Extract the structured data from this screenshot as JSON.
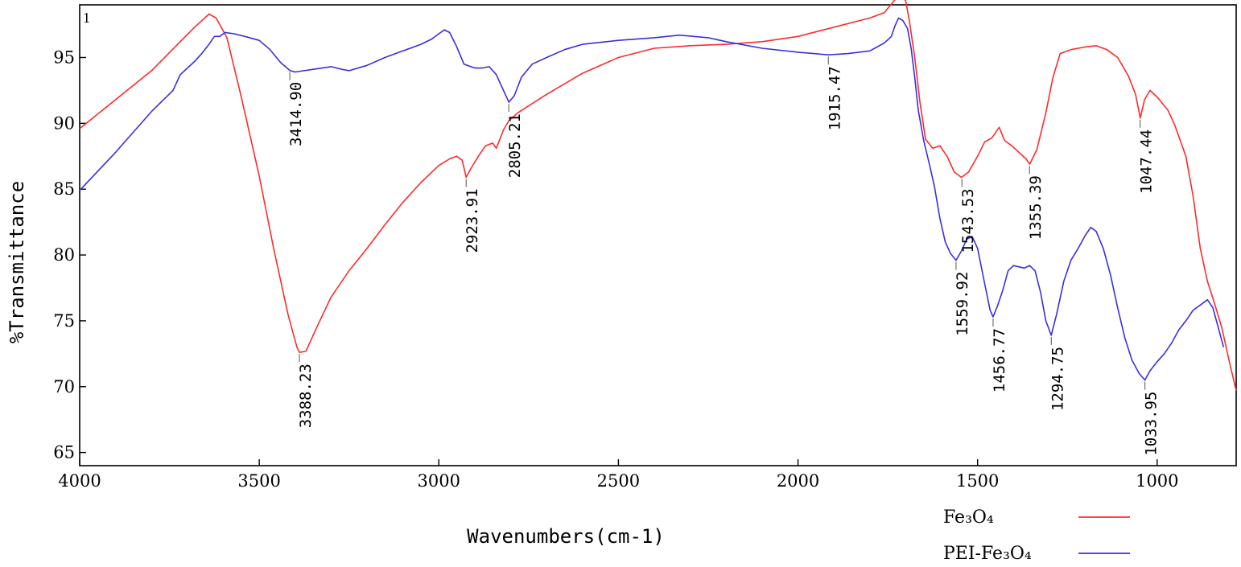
{
  "chart_data": {
    "type": "line",
    "title": "",
    "xlabel": "Wavenumbers(cm-1)",
    "ylabel": "%Transmittance",
    "xlim": [
      4000,
      780
    ],
    "ylim": [
      64,
      99
    ],
    "x_reversed": true,
    "x_ticks": [
      4000,
      3500,
      3000,
      2500,
      2000,
      1500,
      1000
    ],
    "y_ticks": [
      65,
      70,
      75,
      80,
      85,
      90,
      95
    ],
    "grid": false,
    "legend_position": "bottom-right",
    "corner_mark": "1",
    "series": [
      {
        "name": "Fe₃O₄",
        "color": "#ff2a2a",
        "points": [
          [
            4000,
            89.6
          ],
          [
            3900,
            91.8
          ],
          [
            3800,
            94.0
          ],
          [
            3720,
            96.2
          ],
          [
            3680,
            97.3
          ],
          [
            3640,
            98.3
          ],
          [
            3620,
            98.0
          ],
          [
            3590,
            96.5
          ],
          [
            3550,
            92.0
          ],
          [
            3500,
            86.0
          ],
          [
            3460,
            80.5
          ],
          [
            3420,
            75.5
          ],
          [
            3395,
            73.0
          ],
          [
            3388,
            72.6
          ],
          [
            3370,
            72.7
          ],
          [
            3340,
            74.5
          ],
          [
            3300,
            76.8
          ],
          [
            3250,
            78.8
          ],
          [
            3200,
            80.5
          ],
          [
            3150,
            82.3
          ],
          [
            3100,
            84.0
          ],
          [
            3050,
            85.5
          ],
          [
            3000,
            86.8
          ],
          [
            2970,
            87.3
          ],
          [
            2950,
            87.5
          ],
          [
            2935,
            87.2
          ],
          [
            2924,
            85.9
          ],
          [
            2910,
            86.6
          ],
          [
            2890,
            87.5
          ],
          [
            2870,
            88.3
          ],
          [
            2850,
            88.5
          ],
          [
            2840,
            88.1
          ],
          [
            2820,
            89.5
          ],
          [
            2805,
            90.2
          ],
          [
            2780,
            90.8
          ],
          [
            2700,
            92.2
          ],
          [
            2600,
            93.8
          ],
          [
            2500,
            95.0
          ],
          [
            2400,
            95.7
          ],
          [
            2300,
            95.9
          ],
          [
            2200,
            96.0
          ],
          [
            2100,
            96.2
          ],
          [
            2000,
            96.6
          ],
          [
            1900,
            97.3
          ],
          [
            1800,
            98.0
          ],
          [
            1760,
            98.4
          ],
          [
            1730,
            99.4
          ],
          [
            1715,
            99.8
          ],
          [
            1700,
            99.3
          ],
          [
            1690,
            97.8
          ],
          [
            1675,
            95.0
          ],
          [
            1660,
            91.5
          ],
          [
            1645,
            88.8
          ],
          [
            1625,
            88.1
          ],
          [
            1605,
            88.3
          ],
          [
            1585,
            87.5
          ],
          [
            1565,
            86.3
          ],
          [
            1545,
            85.9
          ],
          [
            1525,
            86.3
          ],
          [
            1500,
            87.5
          ],
          [
            1480,
            88.6
          ],
          [
            1460,
            88.9
          ],
          [
            1440,
            89.7
          ],
          [
            1425,
            88.7
          ],
          [
            1405,
            88.3
          ],
          [
            1385,
            87.8
          ],
          [
            1365,
            87.3
          ],
          [
            1355,
            86.9
          ],
          [
            1335,
            88.0
          ],
          [
            1310,
            90.8
          ],
          [
            1290,
            93.5
          ],
          [
            1270,
            95.3
          ],
          [
            1240,
            95.6
          ],
          [
            1200,
            95.8
          ],
          [
            1170,
            95.9
          ],
          [
            1140,
            95.6
          ],
          [
            1110,
            95.0
          ],
          [
            1080,
            93.6
          ],
          [
            1060,
            92.2
          ],
          [
            1047,
            90.4
          ],
          [
            1035,
            91.8
          ],
          [
            1020,
            92.5
          ],
          [
            1000,
            92.0
          ],
          [
            970,
            91.0
          ],
          [
            950,
            89.8
          ],
          [
            920,
            87.5
          ],
          [
            900,
            84.5
          ],
          [
            880,
            80.5
          ],
          [
            860,
            78.0
          ],
          [
            840,
            76.3
          ],
          [
            820,
            74.5
          ],
          [
            800,
            72.0
          ],
          [
            780,
            69.7
          ]
        ]
      },
      {
        "name": "PEI-Fe₃O₄",
        "color": "#3a2ee0",
        "points": [
          [
            4000,
            84.9
          ],
          [
            3900,
            87.8
          ],
          [
            3800,
            90.9
          ],
          [
            3740,
            92.5
          ],
          [
            3720,
            93.7
          ],
          [
            3700,
            94.2
          ],
          [
            3680,
            94.7
          ],
          [
            3660,
            95.3
          ],
          [
            3640,
            96.0
          ],
          [
            3625,
            96.6
          ],
          [
            3610,
            96.6
          ],
          [
            3595,
            96.9
          ],
          [
            3570,
            96.8
          ],
          [
            3540,
            96.6
          ],
          [
            3500,
            96.3
          ],
          [
            3470,
            95.6
          ],
          [
            3440,
            94.6
          ],
          [
            3414,
            94.0
          ],
          [
            3400,
            93.9
          ],
          [
            3350,
            94.1
          ],
          [
            3300,
            94.3
          ],
          [
            3270,
            94.1
          ],
          [
            3250,
            94.0
          ],
          [
            3200,
            94.4
          ],
          [
            3150,
            95.0
          ],
          [
            3100,
            95.5
          ],
          [
            3050,
            96.0
          ],
          [
            3020,
            96.4
          ],
          [
            3000,
            96.8
          ],
          [
            2985,
            97.1
          ],
          [
            2970,
            96.9
          ],
          [
            2950,
            95.8
          ],
          [
            2930,
            94.5
          ],
          [
            2900,
            94.2
          ],
          [
            2880,
            94.2
          ],
          [
            2860,
            94.3
          ],
          [
            2840,
            93.7
          ],
          [
            2820,
            92.5
          ],
          [
            2805,
            91.6
          ],
          [
            2790,
            92.1
          ],
          [
            2770,
            93.5
          ],
          [
            2740,
            94.5
          ],
          [
            2700,
            95.0
          ],
          [
            2650,
            95.6
          ],
          [
            2600,
            96.0
          ],
          [
            2500,
            96.3
          ],
          [
            2400,
            96.5
          ],
          [
            2330,
            96.7
          ],
          [
            2250,
            96.5
          ],
          [
            2200,
            96.2
          ],
          [
            2100,
            95.7
          ],
          [
            2000,
            95.4
          ],
          [
            1915,
            95.2
          ],
          [
            1860,
            95.3
          ],
          [
            1800,
            95.5
          ],
          [
            1760,
            96.1
          ],
          [
            1740,
            96.6
          ],
          [
            1730,
            97.4
          ],
          [
            1720,
            98.0
          ],
          [
            1708,
            97.8
          ],
          [
            1695,
            97.2
          ],
          [
            1685,
            95.7
          ],
          [
            1675,
            93.5
          ],
          [
            1665,
            91.0
          ],
          [
            1650,
            88.7
          ],
          [
            1635,
            87.0
          ],
          [
            1620,
            85.2
          ],
          [
            1605,
            82.8
          ],
          [
            1590,
            81.0
          ],
          [
            1575,
            80.1
          ],
          [
            1560,
            79.6
          ],
          [
            1545,
            80.3
          ],
          [
            1530,
            81.2
          ],
          [
            1515,
            81.4
          ],
          [
            1500,
            80.5
          ],
          [
            1480,
            77.8
          ],
          [
            1465,
            75.8
          ],
          [
            1457,
            75.3
          ],
          [
            1445,
            76.1
          ],
          [
            1430,
            77.3
          ],
          [
            1415,
            78.8
          ],
          [
            1400,
            79.2
          ],
          [
            1385,
            79.1
          ],
          [
            1370,
            79.0
          ],
          [
            1355,
            79.2
          ],
          [
            1340,
            78.8
          ],
          [
            1325,
            77.2
          ],
          [
            1310,
            75.0
          ],
          [
            1295,
            73.9
          ],
          [
            1280,
            75.5
          ],
          [
            1260,
            78.0
          ],
          [
            1240,
            79.6
          ],
          [
            1220,
            80.5
          ],
          [
            1200,
            81.5
          ],
          [
            1185,
            82.1
          ],
          [
            1170,
            81.8
          ],
          [
            1150,
            80.5
          ],
          [
            1130,
            78.5
          ],
          [
            1110,
            76.0
          ],
          [
            1090,
            73.7
          ],
          [
            1070,
            72.0
          ],
          [
            1050,
            71.0
          ],
          [
            1034,
            70.5
          ],
          [
            1020,
            71.2
          ],
          [
            1000,
            71.9
          ],
          [
            980,
            72.5
          ],
          [
            960,
            73.3
          ],
          [
            940,
            74.3
          ],
          [
            920,
            75.0
          ],
          [
            900,
            75.8
          ],
          [
            880,
            76.2
          ],
          [
            860,
            76.6
          ],
          [
            845,
            76.0
          ],
          [
            830,
            74.5
          ],
          [
            815,
            73.0
          ]
        ]
      }
    ],
    "peak_labels": [
      {
        "text": "3414.90",
        "series": 1,
        "x": 3414.9,
        "y": 94.0,
        "side": "below"
      },
      {
        "text": "3388.23",
        "series": 0,
        "x": 3388.23,
        "y": 72.6,
        "side": "below"
      },
      {
        "text": "2923.91",
        "series": 0,
        "x": 2923.91,
        "y": 85.9,
        "side": "below"
      },
      {
        "text": "2805.21",
        "series": 1,
        "x": 2805.21,
        "y": 91.6,
        "side": "below"
      },
      {
        "text": "1915.47",
        "series": 1,
        "x": 1915.47,
        "y": 95.2,
        "side": "below"
      },
      {
        "text": "1559.92",
        "series": 1,
        "x": 1559.92,
        "y": 79.6,
        "side": "below"
      },
      {
        "text": "1543.53",
        "series": 0,
        "x": 1543.53,
        "y": 85.9,
        "side": "below"
      },
      {
        "text": "1456.77",
        "series": 1,
        "x": 1456.77,
        "y": 75.3,
        "side": "below"
      },
      {
        "text": "1355.39",
        "series": 0,
        "x": 1355.39,
        "y": 86.9,
        "side": "below"
      },
      {
        "text": "1294.75",
        "series": 1,
        "x": 1294.75,
        "y": 73.9,
        "side": "below"
      },
      {
        "text": "1047.44",
        "series": 0,
        "x": 1047.44,
        "y": 90.4,
        "side": "below"
      },
      {
        "text": "1033.95",
        "series": 1,
        "x": 1033.95,
        "y": 70.5,
        "side": "below"
      }
    ]
  }
}
